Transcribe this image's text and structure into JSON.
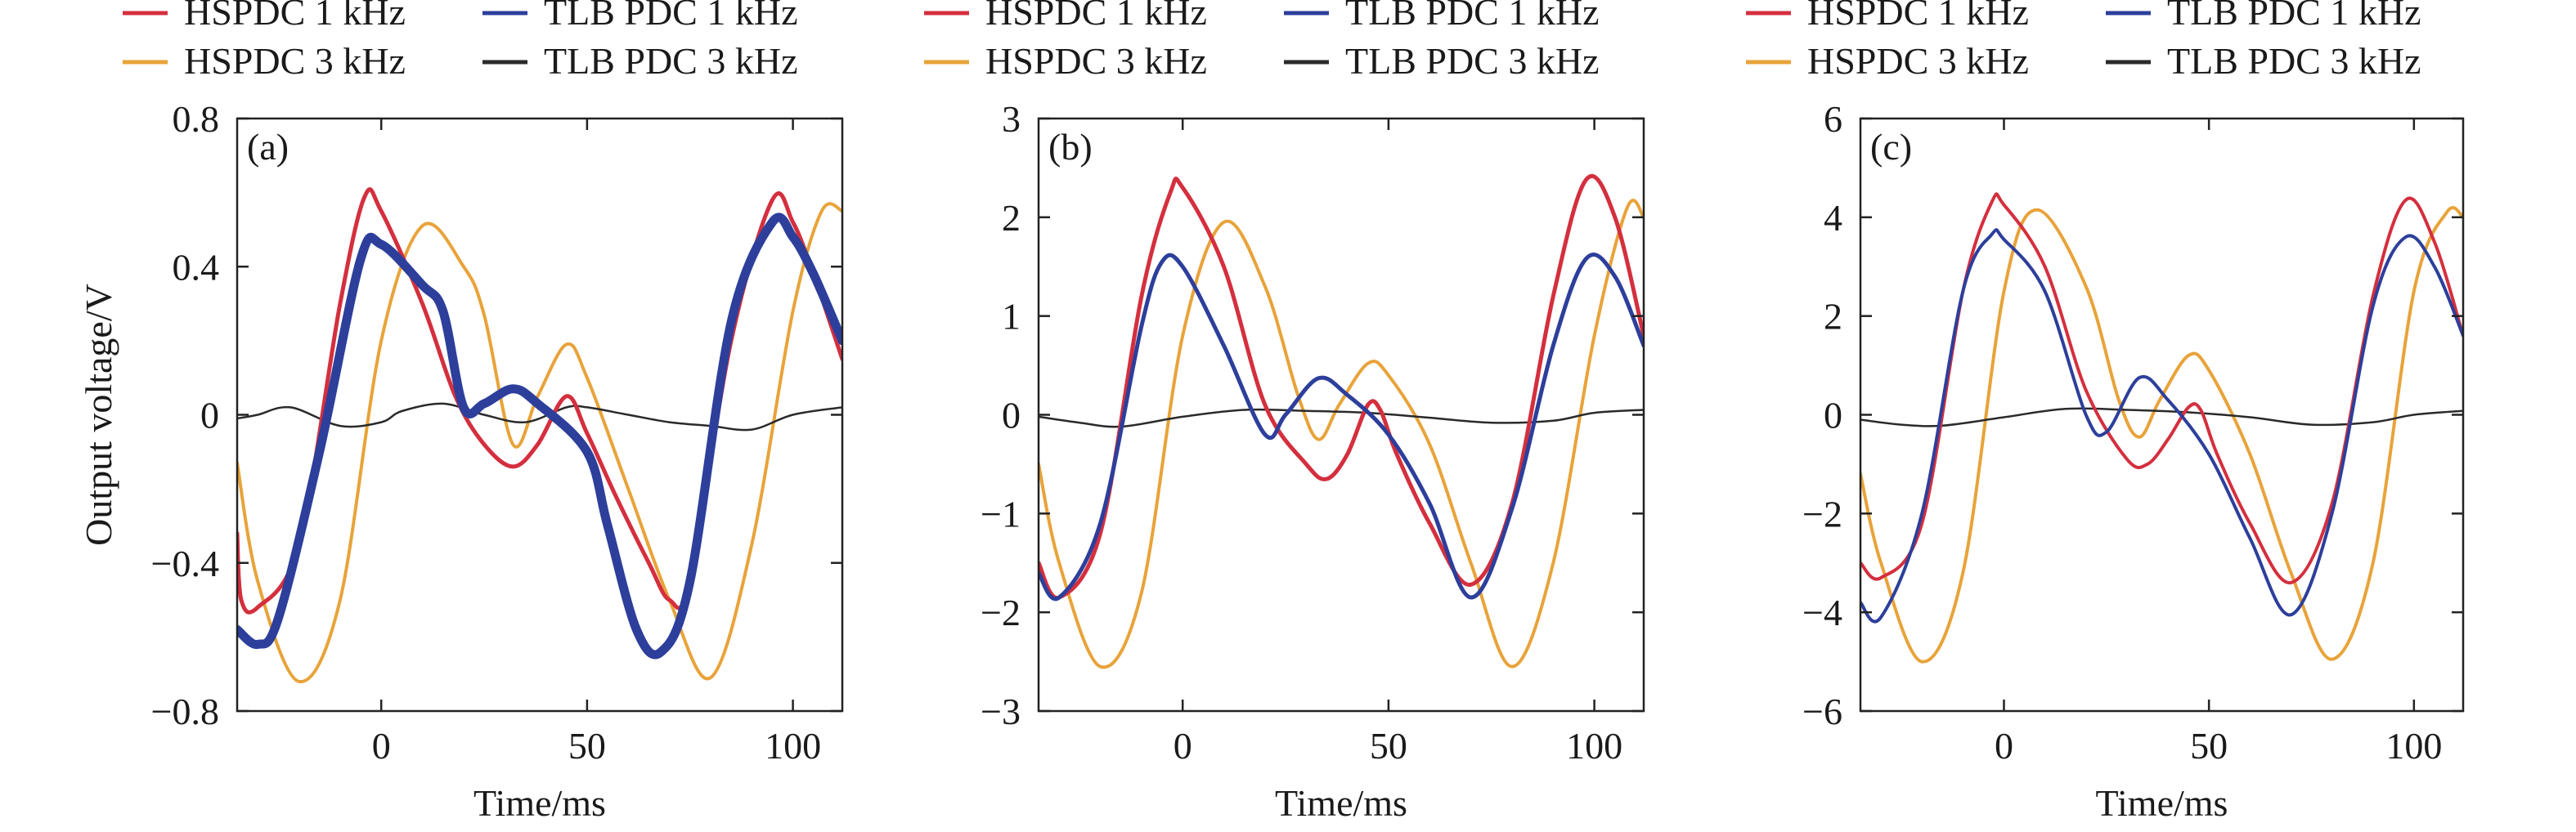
{
  "colors": {
    "hspdc_1k": "#d42f3e",
    "tlb_1k": "#2d3f9b",
    "hspdc_3k": "#e8a33a",
    "tlb_3k": "#2a2a2a"
  },
  "chart_data": [
    {
      "type": "line",
      "panel_label": "(a)",
      "xlabel": "Time/ms",
      "ylabel": "Output voltage/V",
      "xlim": [
        -35,
        112
      ],
      "ylim": [
        -0.8,
        0.8
      ],
      "xticks": [
        0,
        50,
        100
      ],
      "xtick_labels": [
        "0",
        "50",
        "100"
      ],
      "yticks": [
        -0.8,
        -0.4,
        0,
        0.4,
        0.8
      ],
      "ytick_labels": [
        "−0.8",
        "−0.4",
        "0",
        "0.4",
        "0.8"
      ],
      "legend": {
        "placement": "top",
        "entries": [
          "HSPDC 1 kHz",
          "TLB PDC 1 kHz",
          "HSPDC 3 kHz",
          "TLB PDC 3 kHz"
        ]
      },
      "series": [
        {
          "name": "HSPDC 1 kHz",
          "color_key": "hspdc_1k",
          "x": [
            -35,
            -34,
            -30,
            -20,
            -10,
            -4,
            0,
            10,
            18,
            25,
            32,
            38,
            45,
            50,
            57,
            65,
            70,
            75,
            85,
            95,
            100,
            105,
            112
          ],
          "y": [
            -0.32,
            -0.5,
            -0.52,
            -0.35,
            0.3,
            0.59,
            0.55,
            0.3,
            0.05,
            -0.08,
            -0.14,
            -0.08,
            0.05,
            -0.05,
            -0.22,
            -0.4,
            -0.5,
            -0.45,
            0.2,
            0.58,
            0.52,
            0.38,
            0.15
          ]
        },
        {
          "name": "TLB PDC 1 kHz",
          "color_key": "tlb_1k",
          "x": [
            -35,
            -30,
            -25,
            -15,
            -5,
            0,
            10,
            15,
            20,
            25,
            32,
            38,
            50,
            55,
            62,
            68,
            75,
            85,
            95,
            100,
            105,
            112
          ],
          "y": [
            -0.58,
            -0.62,
            -0.55,
            -0.1,
            0.42,
            0.46,
            0.35,
            0.28,
            0.02,
            0.03,
            0.07,
            0.03,
            -0.1,
            -0.3,
            -0.58,
            -0.64,
            -0.45,
            0.25,
            0.52,
            0.48,
            0.38,
            0.2
          ]
        },
        {
          "name": "HSPDC 3 kHz",
          "color_key": "hspdc_3k",
          "x": [
            -35,
            -30,
            -20,
            -10,
            0,
            10,
            20,
            25,
            32,
            38,
            45,
            50,
            60,
            70,
            80,
            90,
            100,
            107,
            112
          ],
          "y": [
            -0.13,
            -0.45,
            -0.72,
            -0.5,
            0.2,
            0.51,
            0.4,
            0.27,
            -0.08,
            0.05,
            0.19,
            0.1,
            -0.2,
            -0.5,
            -0.71,
            -0.35,
            0.28,
            0.55,
            0.55
          ]
        },
        {
          "name": "TLB PDC 3 kHz",
          "color_key": "tlb_3k",
          "x": [
            -35,
            -30,
            -22,
            -10,
            0,
            5,
            15,
            25,
            35,
            45,
            50,
            60,
            70,
            80,
            90,
            100,
            112
          ],
          "y": [
            -0.01,
            0.0,
            0.02,
            -0.03,
            -0.02,
            0.01,
            0.03,
            0.0,
            -0.02,
            0.02,
            0.02,
            0.0,
            -0.02,
            -0.03,
            -0.04,
            0.0,
            0.02
          ]
        }
      ]
    },
    {
      "type": "line",
      "panel_label": "(b)",
      "xlabel": "Time/ms",
      "ylabel": "",
      "xlim": [
        -35,
        112
      ],
      "ylim": [
        -3,
        3
      ],
      "xticks": [
        0,
        50,
        100
      ],
      "xtick_labels": [
        "0",
        "50",
        "100"
      ],
      "yticks": [
        -3,
        -2,
        -1,
        0,
        1,
        2,
        3
      ],
      "ytick_labels": [
        "−3",
        "−2",
        "−1",
        "0",
        "1",
        "2",
        "3"
      ],
      "legend": {
        "placement": "top",
        "entries": [
          "HSPDC 1 kHz",
          "TLB PDC 1 kHz",
          "HSPDC 3 kHz",
          "TLB PDC 3 kHz"
        ]
      },
      "series": [
        {
          "name": "HSPDC 1 kHz",
          "color_key": "hspdc_1k",
          "x": [
            -35,
            -30,
            -20,
            -10,
            -3,
            0,
            10,
            20,
            30,
            35,
            40,
            45,
            48,
            52,
            60,
            70,
            80,
            90,
            98,
            105,
            112
          ],
          "y": [
            -1.5,
            -1.85,
            -1.2,
            1.2,
            2.25,
            2.3,
            1.5,
            0.1,
            -0.5,
            -0.65,
            -0.4,
            0.1,
            0.05,
            -0.4,
            -1.1,
            -1.72,
            -0.9,
            1.2,
            2.38,
            2.0,
            0.8
          ]
        },
        {
          "name": "TLB PDC 1 kHz",
          "color_key": "tlb_1k",
          "x": [
            -35,
            -30,
            -20,
            -10,
            -5,
            0,
            10,
            20,
            25,
            33,
            40,
            50,
            60,
            70,
            80,
            90,
            98,
            105,
            112
          ],
          "y": [
            -1.6,
            -1.85,
            -1.1,
            0.9,
            1.55,
            1.5,
            0.7,
            -0.2,
            0.0,
            0.37,
            0.2,
            -0.2,
            -0.9,
            -1.85,
            -0.95,
            0.7,
            1.58,
            1.4,
            0.7
          ]
        },
        {
          "name": "HSPDC 3 kHz",
          "color_key": "hspdc_3k",
          "x": [
            -35,
            -30,
            -20,
            -10,
            0,
            10,
            20,
            28,
            33,
            38,
            45,
            50,
            60,
            70,
            80,
            90,
            100,
            108,
            112
          ],
          "y": [
            -0.5,
            -1.5,
            -2.55,
            -1.8,
            0.8,
            1.95,
            1.3,
            0.2,
            -0.25,
            0.1,
            0.52,
            0.4,
            -0.3,
            -1.5,
            -2.55,
            -1.5,
            0.8,
            2.1,
            2.0
          ]
        },
        {
          "name": "TLB PDC 3 kHz",
          "color_key": "tlb_3k",
          "x": [
            -35,
            -25,
            -15,
            0,
            15,
            30,
            45,
            60,
            75,
            90,
            100,
            112
          ],
          "y": [
            -0.02,
            -0.08,
            -0.12,
            -0.02,
            0.05,
            0.04,
            0.02,
            -0.03,
            -0.08,
            -0.06,
            0.02,
            0.05
          ]
        }
      ]
    },
    {
      "type": "line",
      "panel_label": "(c)",
      "xlabel": "Time/ms",
      "ylabel": "",
      "xlim": [
        -35,
        112
      ],
      "ylim": [
        -6,
        6
      ],
      "xticks": [
        0,
        50,
        100
      ],
      "xtick_labels": [
        "0",
        "50",
        "100"
      ],
      "yticks": [
        -6,
        -4,
        -2,
        0,
        2,
        4,
        6
      ],
      "ytick_labels": [
        "−6",
        "−4",
        "−2",
        "0",
        "2",
        "4",
        "6"
      ],
      "legend": {
        "placement": "top",
        "entries": [
          "HSPDC 1 kHz",
          "TLB PDC 1 kHz",
          "HSPDC 3 kHz",
          "TLB PDC 3 kHz"
        ]
      },
      "series": [
        {
          "name": "HSPDC 1 kHz",
          "color_key": "hspdc_1k",
          "x": [
            -35,
            -30,
            -20,
            -10,
            -3,
            0,
            10,
            20,
            30,
            35,
            40,
            45,
            48,
            52,
            60,
            70,
            80,
            90,
            98,
            105,
            112
          ],
          "y": [
            -3.0,
            -3.3,
            -2.2,
            2.5,
            4.3,
            4.25,
            3.0,
            0.5,
            -0.9,
            -1.0,
            -0.5,
            0.15,
            0.1,
            -0.8,
            -2.2,
            -3.4,
            -1.8,
            2.4,
            4.35,
            3.5,
            1.6
          ]
        },
        {
          "name": "TLB PDC 1 kHz",
          "color_key": "tlb_1k",
          "x": [
            -35,
            -30,
            -20,
            -10,
            -3,
            0,
            10,
            20,
            25,
            33,
            40,
            50,
            60,
            70,
            80,
            90,
            98,
            105,
            112
          ],
          "y": [
            -3.8,
            -4.1,
            -2.0,
            2.5,
            3.65,
            3.55,
            2.5,
            0.0,
            -0.35,
            0.75,
            0.3,
            -0.8,
            -2.5,
            -4.05,
            -2.0,
            2.2,
            3.6,
            3.0,
            1.6
          ]
        },
        {
          "name": "HSPDC 3 kHz",
          "color_key": "hspdc_3k",
          "x": [
            -35,
            -30,
            -20,
            -10,
            0,
            8,
            20,
            28,
            33,
            38,
            45,
            50,
            60,
            70,
            80,
            90,
            100,
            108,
            112
          ],
          "y": [
            -1.2,
            -3.0,
            -5.0,
            -3.2,
            2.5,
            4.15,
            2.6,
            0.3,
            -0.45,
            0.3,
            1.2,
            0.9,
            -0.8,
            -3.2,
            -4.95,
            -3.0,
            2.5,
            4.1,
            4.0
          ]
        },
        {
          "name": "TLB PDC 3 kHz",
          "color_key": "tlb_3k",
          "x": [
            -35,
            -25,
            -15,
            0,
            15,
            30,
            45,
            60,
            75,
            90,
            100,
            112
          ],
          "y": [
            -0.1,
            -0.2,
            -0.22,
            -0.05,
            0.12,
            0.1,
            0.05,
            -0.05,
            -0.2,
            -0.15,
            0.0,
            0.08
          ]
        }
      ]
    }
  ]
}
